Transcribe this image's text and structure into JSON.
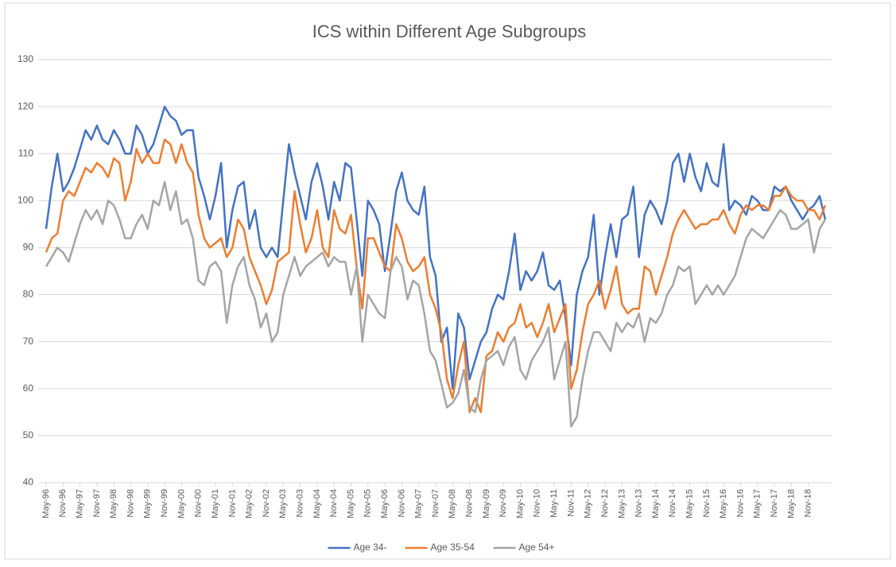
{
  "chart_data": {
    "type": "line",
    "title": "ICS within Different Age Subgroups",
    "categories": [
      "May-96",
      null,
      null,
      "Nov-96",
      null,
      null,
      "May-97",
      null,
      null,
      "Nov-97",
      null,
      null,
      "May-98",
      null,
      null,
      "Nov-98",
      null,
      null,
      "May-99",
      null,
      null,
      "Nov-99",
      null,
      null,
      "May-00",
      null,
      null,
      "Nov-00",
      null,
      null,
      "May-01",
      null,
      null,
      "Nov-01",
      null,
      null,
      "May-02",
      null,
      null,
      "Nov-02",
      null,
      null,
      "May-03",
      null,
      null,
      "Nov-03",
      null,
      null,
      "May-04",
      null,
      null,
      "Nov-04",
      null,
      null,
      "May-05",
      null,
      null,
      "Nov-05",
      null,
      null,
      "May-06",
      null,
      null,
      "Nov-06",
      null,
      null,
      "May-07",
      null,
      null,
      "Nov-07",
      null,
      null,
      "May-08",
      null,
      null,
      "Nov-08",
      null,
      null,
      "May-09",
      null,
      null,
      "Nov-09",
      null,
      null,
      "May-10",
      null,
      null,
      "Nov-10",
      null,
      null,
      "May-11",
      null,
      null,
      "Nov-11",
      null,
      null,
      "May-12",
      null,
      null,
      "Nov-12",
      null,
      null,
      "May-13",
      null,
      null,
      "Nov-13",
      null,
      null,
      "May-14",
      null,
      null,
      "Nov-14",
      null,
      null,
      "May-15",
      null,
      null,
      "Nov-15",
      null,
      null,
      "May-16",
      null,
      null,
      "Nov-16",
      null,
      null,
      "May-17",
      null,
      null,
      "Nov-17",
      null,
      null,
      "May-18",
      null,
      null,
      "Nov-18",
      null,
      null,
      null
    ],
    "series": [
      {
        "name": "Age 34-",
        "color": "#4472c4",
        "values": [
          94,
          103,
          110,
          102,
          104,
          107,
          111,
          115,
          113,
          116,
          113,
          112,
          115,
          113,
          110,
          110,
          116,
          114,
          110,
          112,
          116,
          120,
          118,
          117,
          114,
          115,
          115,
          105,
          101,
          96,
          101,
          108,
          90,
          98,
          103,
          104,
          94,
          98,
          90,
          88,
          90,
          88,
          100,
          112,
          106,
          101,
          96,
          104,
          108,
          103,
          96,
          104,
          100,
          108,
          107,
          96,
          84,
          100,
          98,
          95,
          85,
          93,
          102,
          106,
          100,
          98,
          97,
          103,
          88,
          84,
          70,
          73,
          60,
          76,
          73,
          62,
          66,
          70,
          72,
          77,
          80,
          79,
          85,
          93,
          81,
          85,
          83,
          85,
          89,
          82,
          81,
          83,
          75,
          65,
          80,
          85,
          88,
          97,
          80,
          88,
          95,
          88,
          96,
          97,
          103,
          88,
          97,
          100,
          98,
          95,
          100,
          108,
          110,
          104,
          110,
          105,
          102,
          108,
          104,
          103,
          112,
          98,
          100,
          99,
          97,
          101,
          100,
          98,
          98,
          103,
          102,
          103,
          100,
          98,
          96,
          98,
          99,
          101,
          96
        ]
      },
      {
        "name": "Age 35-54",
        "color": "#ed7d31",
        "values": [
          89,
          92,
          93,
          100,
          102,
          101,
          104,
          107,
          106,
          108,
          107,
          105,
          109,
          108,
          100,
          104,
          111,
          108,
          110,
          108,
          108,
          113,
          112,
          108,
          112,
          108,
          106,
          97,
          92,
          90,
          91,
          92,
          88,
          90,
          96,
          94,
          88,
          85,
          82,
          78,
          81,
          87,
          88,
          89,
          102,
          95,
          89,
          92,
          98,
          90,
          88,
          98,
          94,
          93,
          97,
          86,
          77,
          92,
          92,
          89,
          86,
          85,
          95,
          92,
          87,
          85,
          86,
          88,
          80,
          77,
          72,
          62,
          58,
          65,
          70,
          55,
          58,
          55,
          67,
          68,
          72,
          70,
          73,
          74,
          78,
          73,
          74,
          71,
          74,
          78,
          72,
          75,
          78,
          60,
          64,
          72,
          78,
          80,
          83,
          77,
          81,
          86,
          78,
          76,
          77,
          77,
          86,
          85,
          80,
          84,
          88,
          93,
          96,
          98,
          96,
          94,
          95,
          95,
          96,
          96,
          98,
          95,
          93,
          97,
          99,
          98,
          99,
          99,
          98,
          101,
          101,
          103,
          101,
          100,
          100,
          98,
          98,
          96,
          99
        ]
      },
      {
        "name": "Age 54+",
        "color": "#a5a5a5",
        "values": [
          86,
          88,
          90,
          89,
          87,
          91,
          95,
          98,
          96,
          98,
          95,
          100,
          99,
          96,
          92,
          92,
          95,
          97,
          94,
          100,
          99,
          104,
          98,
          102,
          95,
          96,
          92,
          83,
          82,
          86,
          87,
          85,
          74,
          82,
          86,
          88,
          82,
          79,
          73,
          76,
          70,
          72,
          80,
          84,
          88,
          84,
          86,
          87,
          88,
          89,
          86,
          88,
          87,
          87,
          80,
          86,
          70,
          80,
          78,
          76,
          75,
          85,
          88,
          86,
          79,
          83,
          82,
          76,
          68,
          66,
          61,
          56,
          57,
          59,
          64,
          56,
          55,
          62,
          66,
          67,
          68,
          65,
          69,
          71,
          64,
          62,
          66,
          68,
          70,
          73,
          62,
          66,
          70,
          52,
          54,
          62,
          68,
          72,
          72,
          70,
          68,
          74,
          72,
          74,
          73,
          76,
          70,
          75,
          74,
          76,
          80,
          82,
          86,
          85,
          86,
          78,
          80,
          82,
          80,
          82,
          80,
          82,
          84,
          88,
          92,
          94,
          93,
          92,
          94,
          96,
          98,
          97,
          94,
          94,
          95,
          96,
          89,
          94,
          96
        ]
      }
    ],
    "ylim": [
      40,
      130
    ],
    "yticks": [
      40,
      50,
      60,
      70,
      80,
      90,
      100,
      110,
      120,
      130
    ],
    "grid": true,
    "legend": "bottom"
  }
}
